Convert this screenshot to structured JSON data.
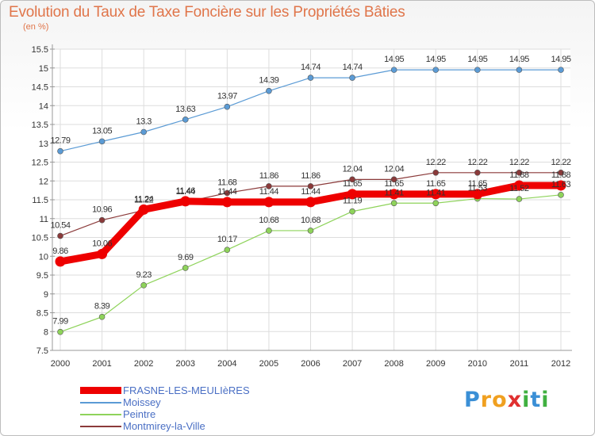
{
  "title": "Evolution du Taux de Taxe Foncière sur les Propriétés Bâties",
  "unit_label": "(en %)",
  "logo": {
    "letters": [
      "P",
      "r",
      "o",
      "x",
      "i",
      "t",
      "i"
    ],
    "colors": [
      "#3a8fd6",
      "#f0a020",
      "#f0a020",
      "#e03030",
      "#40b040",
      "#3a8fd6",
      "#40b040"
    ]
  },
  "chart_data": {
    "type": "line",
    "title": "Evolution du Taux de Taxe Foncière sur les Propriétés Bâties",
    "ylabel": "(en %)",
    "xlabel": "",
    "ylim": [
      7.5,
      15.5
    ],
    "y_ticks": [
      "7.5",
      "8",
      "8.5",
      "9",
      "9.5",
      "10",
      "10.5",
      "11",
      "11.5",
      "12",
      "12.5",
      "13",
      "13.5",
      "14",
      "14.5",
      "15",
      "15.5"
    ],
    "x": [
      "2000",
      "2001",
      "2002",
      "2003",
      "2004",
      "2005",
      "2006",
      "2007",
      "2008",
      "2009",
      "2010",
      "2011",
      "2012"
    ],
    "grid": true,
    "legend_position": "bottom-left",
    "series": [
      {
        "name": "FRASNE-LES-MEULIèRES",
        "color": "#ee0000",
        "values": [
          9.86,
          10.06,
          11.24,
          11.46,
          11.44,
          11.44,
          11.44,
          11.65,
          11.65,
          11.65,
          11.65,
          11.88,
          11.88
        ],
        "labels": [
          "9.86",
          "10.06",
          "11.24",
          "11.46",
          "11.44",
          "11.44",
          "11.44",
          "11.65",
          "11.65",
          "11.65",
          "11.65",
          "11.88",
          "11.88"
        ]
      },
      {
        "name": "Moissey",
        "color": "#5b9bd5",
        "values": [
          12.79,
          13.05,
          13.3,
          13.63,
          13.97,
          14.39,
          14.74,
          14.74,
          14.95,
          14.95,
          14.95,
          14.95,
          14.95
        ],
        "labels": [
          "12.79",
          "13.05",
          "13.3",
          "13.63",
          "13.97",
          "14.39",
          "14.74",
          "14.74",
          "14.95",
          "14.95",
          "14.95",
          "14.95",
          "14.95"
        ]
      },
      {
        "name": "Peintre",
        "color": "#8ed35a",
        "values": [
          7.99,
          8.39,
          9.23,
          9.69,
          10.17,
          10.68,
          10.68,
          11.19,
          11.41,
          11.41,
          11.53,
          11.52,
          11.63
        ],
        "labels": [
          "7.99",
          "8.39",
          "9.23",
          "9.69",
          "10.17",
          "10.68",
          "10.68",
          "11.19",
          "11.41",
          "11.41",
          "11.53",
          "11.52",
          "11.63"
        ]
      },
      {
        "name": "Montmirey-la-Ville",
        "color": "#8b3a3a",
        "values": [
          10.54,
          10.96,
          11.22,
          11.44,
          11.68,
          11.86,
          11.86,
          12.04,
          12.04,
          12.22,
          12.22,
          12.22,
          12.22
        ],
        "labels": [
          "10.54",
          "10.96",
          "11.22",
          "11.44",
          "11.68",
          "11.86",
          "11.86",
          "12.04",
          "12.04",
          "12.22",
          "12.22",
          "12.22",
          "12.22"
        ]
      }
    ]
  }
}
